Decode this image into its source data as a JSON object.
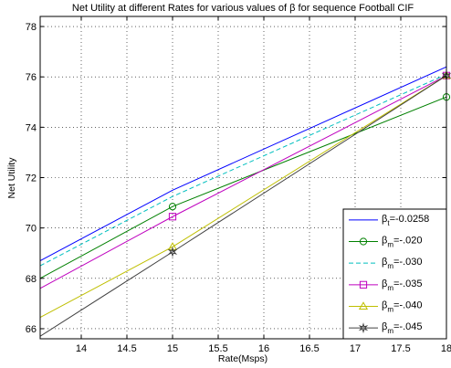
{
  "chart_data": {
    "type": "line",
    "title": "Net Utility at different Rates for various values of β for sequence Football CIF",
    "xlabel": "Rate(Msps)",
    "ylabel": "Net Utility",
    "xlim": [
      13.55,
      18
    ],
    "ylim": [
      65.6,
      78.4
    ],
    "xticks": [
      14,
      14.5,
      15,
      15.5,
      16,
      16.5,
      17,
      17.5,
      18
    ],
    "xtick_labels": [
      "14",
      "14.5",
      "15",
      "15.5",
      "16",
      "16.5",
      "17",
      "17.5",
      "18"
    ],
    "yticks": [
      66,
      68,
      70,
      72,
      74,
      76,
      78
    ],
    "ytick_labels": [
      "66",
      "68",
      "70",
      "72",
      "74",
      "76",
      "78"
    ],
    "grid": true,
    "legend_position": "bottom-right",
    "series": [
      {
        "name": "β",
        "sub": "t",
        "value": "=-0.0258",
        "color": "#0000ff",
        "dash": "solid",
        "marker": "none",
        "x": [
          13.55,
          15,
          18
        ],
        "y": [
          68.7,
          71.5,
          76.4
        ]
      },
      {
        "name": "β",
        "sub": "m",
        "value": "=-.020",
        "color": "#008000",
        "dash": "solid",
        "marker": "circle",
        "x": [
          13.55,
          15,
          18
        ],
        "y": [
          68.0,
          70.85,
          75.2
        ]
      },
      {
        "name": "β",
        "sub": "m",
        "value": "=-.030",
        "color": "#00bfbf",
        "dash": "dashed",
        "marker": "none",
        "x": [
          13.55,
          15,
          18
        ],
        "y": [
          68.5,
          71.25,
          76.1
        ]
      },
      {
        "name": "β",
        "sub": "m",
        "value": "=-.035",
        "color": "#bf00bf",
        "dash": "solid",
        "marker": "square",
        "x": [
          13.55,
          15,
          18
        ],
        "y": [
          67.6,
          70.45,
          76.05
        ]
      },
      {
        "name": "β",
        "sub": "m",
        "value": "=-.040",
        "color": "#bfbf00",
        "dash": "solid",
        "marker": "triangle",
        "x": [
          13.55,
          15,
          18
        ],
        "y": [
          66.45,
          69.25,
          76.05
        ]
      },
      {
        "name": "β",
        "sub": "m",
        "value": "=-.045",
        "color": "#404040",
        "dash": "solid",
        "marker": "star",
        "x": [
          13.55,
          15,
          18
        ],
        "y": [
          65.7,
          69.05,
          76.05
        ]
      }
    ]
  }
}
